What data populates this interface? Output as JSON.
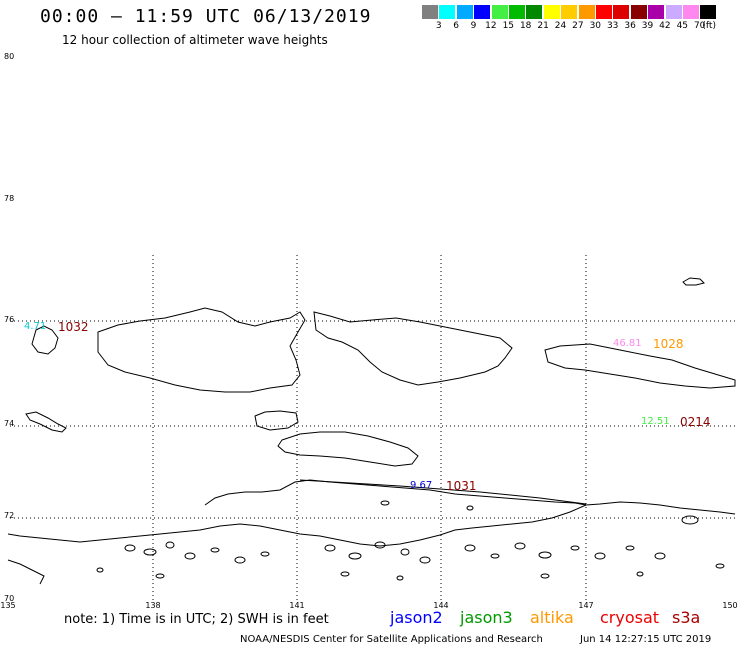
{
  "title": "00:00 – 11:59 UTC 06/13/2019",
  "subtitle": "12 hour collection of altimeter wave heights",
  "legend": {
    "colors": [
      "#808080",
      "#00ffff",
      "#00aaff",
      "#0000ff",
      "#44ee44",
      "#00bb00",
      "#008800",
      "#ffff00",
      "#ffcc00",
      "#ff9900",
      "#ff0000",
      "#dd0000",
      "#880000",
      "#aa00aa",
      "#ccaaff",
      "#ff88ee",
      "#000000"
    ],
    "labels": [
      "3",
      "6",
      "9",
      "12",
      "15",
      "18",
      "21",
      "24",
      "27",
      "30",
      "33",
      "36",
      "39",
      "42",
      "45",
      "70"
    ],
    "unit": "(ft)"
  },
  "lat_labels": [
    "80",
    "78",
    "76",
    "74",
    "72",
    "70"
  ],
  "lon_labels": [
    "135",
    "138",
    "141",
    "144",
    "147",
    "150"
  ],
  "observations": [
    {
      "value": "4.71",
      "time": "1032",
      "value_color": "#00cccc",
      "time_color": "#880000"
    },
    {
      "value": "46.81",
      "time": "1028",
      "value_color": "#ff88ee",
      "time_color": "#ff9900"
    },
    {
      "value": "12.51",
      "time": "0214",
      "value_color": "#44ee44",
      "time_color": "#880000"
    },
    {
      "value": "9.67",
      "time": "1031",
      "value_color": "#0000cc",
      "time_color": "#880000"
    }
  ],
  "note": "note:  1) Time is in UTC;  2) SWH is in feet",
  "satellites": [
    {
      "name": "jason2",
      "color": "#0000ff"
    },
    {
      "name": "jason3",
      "color": "#009900"
    },
    {
      "name": "altika",
      "color": "#ff9900"
    },
    {
      "name": "cryosat",
      "color": "#ee0000"
    },
    {
      "name": "s3a",
      "color": "#aa0000"
    }
  ],
  "footer": "NOAA/NESDIS Center for Satellite Applications and Research",
  "footer_time": "Jun 14 12:27:15 UTC 2019"
}
